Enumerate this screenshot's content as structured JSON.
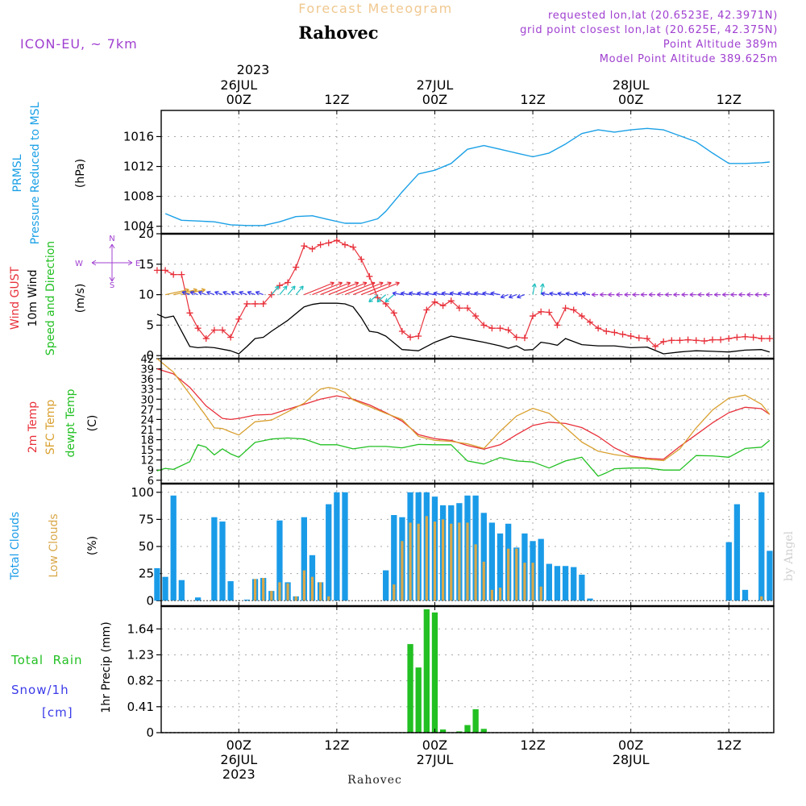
{
  "header": {
    "title": "Forecast Meteogram",
    "location": "Rahovec",
    "model": "ICON-EU, ~ 7km",
    "requested": "requested lon,lat (20.6523E, 42.3971N)",
    "grid": "grid point closest lon,lat (20.625E, 42.375N)",
    "altitude": "Point Altitude 389m",
    "model_altitude": "Model Point Altitude 389.625m",
    "footer": "Rahovec",
    "credit": "by Angel"
  },
  "time_axis": {
    "top_year": "2023",
    "top": [
      {
        "h": 0,
        "lines": [
          "26JUL",
          "00Z"
        ]
      },
      {
        "h": 12,
        "lines": [
          "12Z"
        ]
      },
      {
        "h": 24,
        "lines": [
          "27JUL",
          "00Z"
        ]
      },
      {
        "h": 36,
        "lines": [
          "12Z"
        ]
      },
      {
        "h": 48,
        "lines": [
          "28JUL",
          "00Z"
        ]
      },
      {
        "h": 60,
        "lines": [
          "12Z"
        ]
      }
    ],
    "bottom": [
      {
        "h": 0,
        "lines": [
          "00Z",
          "26JUL",
          "2023"
        ]
      },
      {
        "h": 12,
        "lines": [
          "12Z"
        ]
      },
      {
        "h": 24,
        "lines": [
          "00Z",
          "27JUL"
        ]
      },
      {
        "h": 36,
        "lines": [
          "12Z"
        ]
      },
      {
        "h": 48,
        "lines": [
          "00Z",
          "28JUL"
        ]
      },
      {
        "h": 60,
        "lines": [
          "12Z"
        ]
      }
    ]
  },
  "colors": {
    "pressure": "#1aa0e6",
    "gust": "#e8303a",
    "wind": "#000000",
    "temp": "#e8303a",
    "sfc": "#d9a030",
    "dewpt": "#22c022",
    "total_cloud": "#1a9be8",
    "low_cloud": "#d9a84a",
    "rain": "#22c022",
    "snow": "#3a3ae8",
    "purple": "#a040d0",
    "title": "#f0c890"
  },
  "panels": {
    "pressure": {
      "labels": [
        "PRMSL",
        "Pressure Reduced to MSL"
      ],
      "unit": "(hPa)"
    },
    "wind": {
      "labels": [
        "Wind GUST",
        "10m Wind",
        "Speed and Direction"
      ],
      "unit": "(m/s)",
      "compass": {
        "n": "N",
        "s": "S",
        "w": "W",
        "e": "E"
      }
    },
    "temp": {
      "labels": [
        "2m Temp",
        "SFC Temp",
        "dewpt Temp"
      ],
      "unit": "(C)"
    },
    "clouds": {
      "labels": [
        "Total Clouds",
        "Low Clouds"
      ],
      "unit": "(%)"
    },
    "precip": {
      "labels": [
        "Total  Rain",
        "Snow/1h",
        "[cm]"
      ],
      "unit": "1hr Precip (mm)"
    }
  },
  "chart_data": [
    {
      "type": "line",
      "ylabel": "PRMSL Pressure Reduced to MSL (hPa)",
      "ylim": [
        1003,
        1019.5
      ],
      "yticks": [
        1004,
        1008,
        1012,
        1016
      ],
      "grid": true,
      "series": [
        {
          "name": "PRMSL",
          "x": [
            -9,
            -7,
            -5,
            -3,
            -1,
            1,
            3,
            5,
            7,
            9,
            11,
            13,
            15,
            17,
            18,
            20,
            22,
            24,
            26,
            28,
            30,
            32,
            34,
            36,
            38,
            40,
            42,
            44,
            46,
            48,
            50,
            52,
            54,
            56,
            58,
            60,
            62,
            64,
            65
          ],
          "values": [
            1005.7,
            1004.8,
            1004.7,
            1004.6,
            1004.2,
            1004.1,
            1004.1,
            1004.6,
            1005.3,
            1005.4,
            1004.9,
            1004.4,
            1004.4,
            1005.0,
            1006.0,
            1008.6,
            1011.0,
            1011.5,
            1012.4,
            1014.3,
            1014.8,
            1014.3,
            1013.8,
            1013.3,
            1013.8,
            1015.0,
            1016.4,
            1016.9,
            1016.6,
            1016.9,
            1017.1,
            1016.9,
            1016.1,
            1015.3,
            1013.8,
            1012.4,
            1012.4,
            1012.5,
            1012.6
          ]
        }
      ]
    },
    {
      "type": "line",
      "ylabel": "Wind GUST / 10m Wind Speed and Direction (m/s)",
      "ylim": [
        -0.5,
        20
      ],
      "yticks": [
        0,
        5,
        10,
        15,
        20
      ],
      "grid": true,
      "series": [
        {
          "name": "Wind GUST",
          "x": [
            -10,
            -9,
            -8,
            -7,
            -6,
            -5,
            -4,
            -3,
            -2,
            -1,
            0,
            1,
            2,
            3,
            4,
            5,
            6,
            7,
            8,
            9,
            10,
            11,
            12,
            13,
            14,
            15,
            16,
            17,
            18,
            19,
            20,
            21,
            22,
            23,
            24,
            25,
            26,
            27,
            28,
            29,
            30,
            31,
            32,
            33,
            34,
            35,
            36,
            37,
            38,
            39,
            40,
            41,
            42,
            43,
            44,
            45,
            46,
            47,
            48,
            49,
            50,
            51,
            52,
            53,
            54,
            55,
            56,
            57,
            58,
            59,
            60,
            61,
            62,
            63,
            64,
            65
          ],
          "values": [
            14,
            14,
            13.3,
            13.3,
            7,
            4.5,
            2.8,
            4.2,
            4.2,
            3,
            6,
            8.5,
            8.5,
            8.5,
            10,
            11.5,
            12,
            14.5,
            18,
            17.5,
            18.2,
            18.5,
            18.9,
            18.2,
            17.8,
            15.8,
            13,
            9.5,
            8.5,
            7,
            4,
            3,
            3.2,
            7.5,
            8.8,
            8.2,
            9,
            7.8,
            7.8,
            6.5,
            5,
            4.5,
            4.5,
            4.2,
            3,
            2.9,
            6.5,
            7.2,
            7.1,
            5,
            7.8,
            7.5,
            6.5,
            5.5,
            4.5,
            4,
            3.8,
            3.5,
            3.2,
            2.9,
            2.8,
            1.5,
            2.3,
            2.5,
            2.5,
            2.6,
            2.5,
            2.4,
            2.6,
            2.6,
            2.8,
            3,
            3.1,
            3,
            2.8,
            2.8
          ]
        },
        {
          "name": "10m Wind",
          "x": [
            -10,
            -9,
            -8,
            -6,
            -5,
            -4,
            -3,
            -1,
            0,
            1,
            2,
            3,
            4,
            6,
            8,
            9,
            10,
            11,
            12,
            13,
            14,
            15,
            16,
            17,
            18,
            20,
            22,
            24,
            26,
            28,
            30,
            32,
            33,
            34,
            35,
            36,
            37,
            38,
            39,
            40,
            42,
            44,
            46,
            48,
            50,
            52,
            54,
            55,
            56,
            58,
            60,
            62,
            64,
            65
          ],
          "values": [
            6.8,
            6.2,
            6.5,
            1.5,
            1.3,
            1.4,
            1.3,
            0.8,
            0.3,
            1.5,
            2.8,
            3,
            4,
            5.8,
            8,
            8.4,
            8.6,
            8.6,
            8.6,
            8.5,
            8,
            6.2,
            4,
            3.8,
            3.2,
            1,
            0.8,
            2.2,
            3.2,
            2.7,
            2.2,
            1.6,
            1.2,
            1.6,
            0.9,
            1,
            2.2,
            2,
            1.7,
            2.8,
            1.8,
            1.6,
            1.6,
            1.3,
            1.4,
            0.3,
            0.6,
            0.7,
            0.8,
            0.7,
            0.6,
            0.9,
            1.0,
            0.6
          ]
        }
      ]
    },
    {
      "type": "line",
      "ylabel": "2m Temp / SFC Temp / dewpt Temp (C)",
      "ylim": [
        5,
        42
      ],
      "yticks": [
        6,
        9,
        12,
        15,
        18,
        21,
        24,
        27,
        30,
        33,
        36,
        39,
        42
      ],
      "grid": true,
      "series": [
        {
          "name": "2m Temp",
          "x": [
            -10,
            -8,
            -6,
            -4,
            -2,
            -1,
            0,
            2,
            4,
            6,
            8,
            10,
            12,
            14,
            16,
            18,
            20,
            22,
            24,
            26,
            28,
            30,
            32,
            34,
            36,
            38,
            40,
            42,
            44,
            46,
            48,
            50,
            52,
            54,
            56,
            58,
            60,
            62,
            64,
            65
          ],
          "values": [
            39,
            37.5,
            33.5,
            28,
            24.3,
            24,
            24.3,
            25.3,
            25.5,
            27,
            28.5,
            30,
            31,
            30,
            28.3,
            26,
            23.5,
            19.5,
            18.3,
            17.8,
            16.3,
            15.2,
            16.5,
            19.5,
            22.2,
            23.2,
            22.8,
            21.6,
            19,
            15.6,
            13.2,
            12.5,
            12.2,
            16,
            19.5,
            23,
            26,
            27.6,
            27.2,
            25.5
          ]
        },
        {
          "name": "SFC Temp",
          "x": [
            -10,
            -8,
            -6,
            -4,
            -3,
            -2,
            -1,
            0,
            2,
            4,
            6,
            8,
            9,
            10,
            11,
            12,
            13,
            14,
            16,
            18,
            20,
            22,
            24,
            26,
            28,
            30,
            32,
            34,
            36,
            38,
            40,
            42,
            44,
            46,
            48,
            50,
            52,
            54,
            56,
            58,
            60,
            62,
            64,
            65
          ],
          "values": [
            42,
            38,
            31.5,
            25,
            21.5,
            21.3,
            20.3,
            19.4,
            23.3,
            23.8,
            26.3,
            28.8,
            31,
            33,
            33.5,
            33,
            32,
            29.8,
            27.8,
            25.8,
            24,
            19,
            17.8,
            17.5,
            16.8,
            15.4,
            20.5,
            25,
            27.3,
            25.8,
            21.6,
            17.3,
            14.6,
            13.6,
            12.9,
            12.2,
            11.8,
            15.3,
            21.5,
            26.8,
            30.3,
            31.2,
            28.5,
            25.5
          ]
        },
        {
          "name": "dewpt Temp",
          "x": [
            -10,
            -9,
            -8,
            -6,
            -5,
            -4,
            -3,
            -2,
            -1,
            0,
            2,
            4,
            6,
            8,
            10,
            12,
            14,
            16,
            18,
            20,
            22,
            24,
            26,
            28,
            30,
            32,
            34,
            36,
            38,
            40,
            42,
            44,
            45,
            46,
            48,
            50,
            52,
            54,
            56,
            58,
            60,
            62,
            64,
            65
          ],
          "values": [
            8.8,
            9.5,
            9.2,
            11.5,
            16.5,
            15.8,
            13.5,
            15.3,
            13.8,
            12.8,
            17.2,
            18.2,
            18.5,
            18.2,
            16.5,
            16.5,
            15.3,
            16,
            16,
            15.6,
            16.6,
            16.5,
            16.5,
            11.7,
            10.8,
            12.7,
            11.7,
            11.4,
            9.6,
            11.7,
            12.8,
            7.2,
            8.2,
            9.4,
            9.6,
            9.6,
            9,
            9,
            13.3,
            13.2,
            12.8,
            15.4,
            15.8,
            17.8
          ]
        }
      ]
    },
    {
      "type": "bar",
      "ylabel": "Total Clouds / Low Clouds (%)",
      "ylim": [
        -5,
        108
      ],
      "yticks": [
        0,
        25,
        50,
        75,
        100
      ],
      "grid": true,
      "x": [
        -10,
        -9,
        -8,
        -7,
        -6,
        -5,
        -4,
        -3,
        -2,
        -1,
        0,
        1,
        2,
        3,
        4,
        5,
        6,
        7,
        8,
        9,
        10,
        11,
        12,
        13,
        14,
        15,
        16,
        17,
        18,
        19,
        20,
        21,
        22,
        23,
        24,
        25,
        26,
        27,
        28,
        29,
        30,
        31,
        32,
        33,
        34,
        35,
        36,
        37,
        38,
        39,
        40,
        41,
        42,
        43,
        44,
        45,
        46,
        47,
        48,
        49,
        50,
        51,
        52,
        53,
        54,
        55,
        56,
        57,
        58,
        59,
        60,
        61,
        62,
        63,
        64,
        65
      ],
      "series": [
        {
          "name": "Total Clouds",
          "values": [
            30,
            22,
            97,
            19,
            0,
            3,
            0,
            77,
            73,
            18,
            0,
            1,
            20,
            21,
            9,
            74,
            17,
            4,
            77,
            42,
            17,
            89,
            100,
            100,
            0,
            0,
            0,
            0,
            28,
            79,
            77,
            100,
            100,
            100,
            96,
            88,
            88,
            90,
            97,
            97,
            81,
            72,
            62,
            71,
            49,
            62,
            55,
            57,
            34,
            32,
            32,
            31,
            24,
            2,
            0,
            0,
            0,
            0,
            0,
            0,
            0,
            0,
            0,
            0,
            0,
            0,
            0,
            0,
            0,
            0,
            54,
            89,
            10,
            0,
            100,
            46
          ]
        },
        {
          "name": "Low Clouds",
          "values": [
            0,
            0,
            0,
            0,
            0,
            0,
            0,
            0,
            0,
            0,
            0,
            0,
            20,
            21,
            9,
            17,
            16,
            4,
            28,
            22,
            17,
            4,
            0,
            0,
            0,
            0,
            0,
            0,
            0,
            15,
            55,
            72,
            71,
            78,
            73,
            75,
            71,
            72,
            72,
            52,
            36,
            10,
            12,
            48,
            48,
            35,
            35,
            13,
            0,
            0,
            0,
            0,
            0,
            0,
            0,
            0,
            0,
            0,
            0,
            0,
            0,
            0,
            0,
            0,
            0,
            0,
            0,
            0,
            0,
            0,
            0,
            0,
            0,
            0,
            4,
            0
          ]
        }
      ]
    },
    {
      "type": "bar",
      "ylabel": "1hr Precip (mm)",
      "ylim": [
        0,
        2.0
      ],
      "yticks": [
        0,
        0.41,
        0.82,
        1.23,
        1.64
      ],
      "yticklabels": [
        "0",
        "0.41",
        "0.82",
        "1.23",
        "1.64"
      ],
      "grid": true,
      "x": [
        21,
        22,
        23,
        24,
        25,
        26,
        27,
        28,
        29,
        30
      ],
      "series": [
        {
          "name": "Total Rain",
          "values": [
            1.4,
            1.03,
            1.95,
            1.9,
            0.05,
            0,
            0.02,
            0.12,
            0.37,
            0.06
          ]
        }
      ]
    }
  ]
}
